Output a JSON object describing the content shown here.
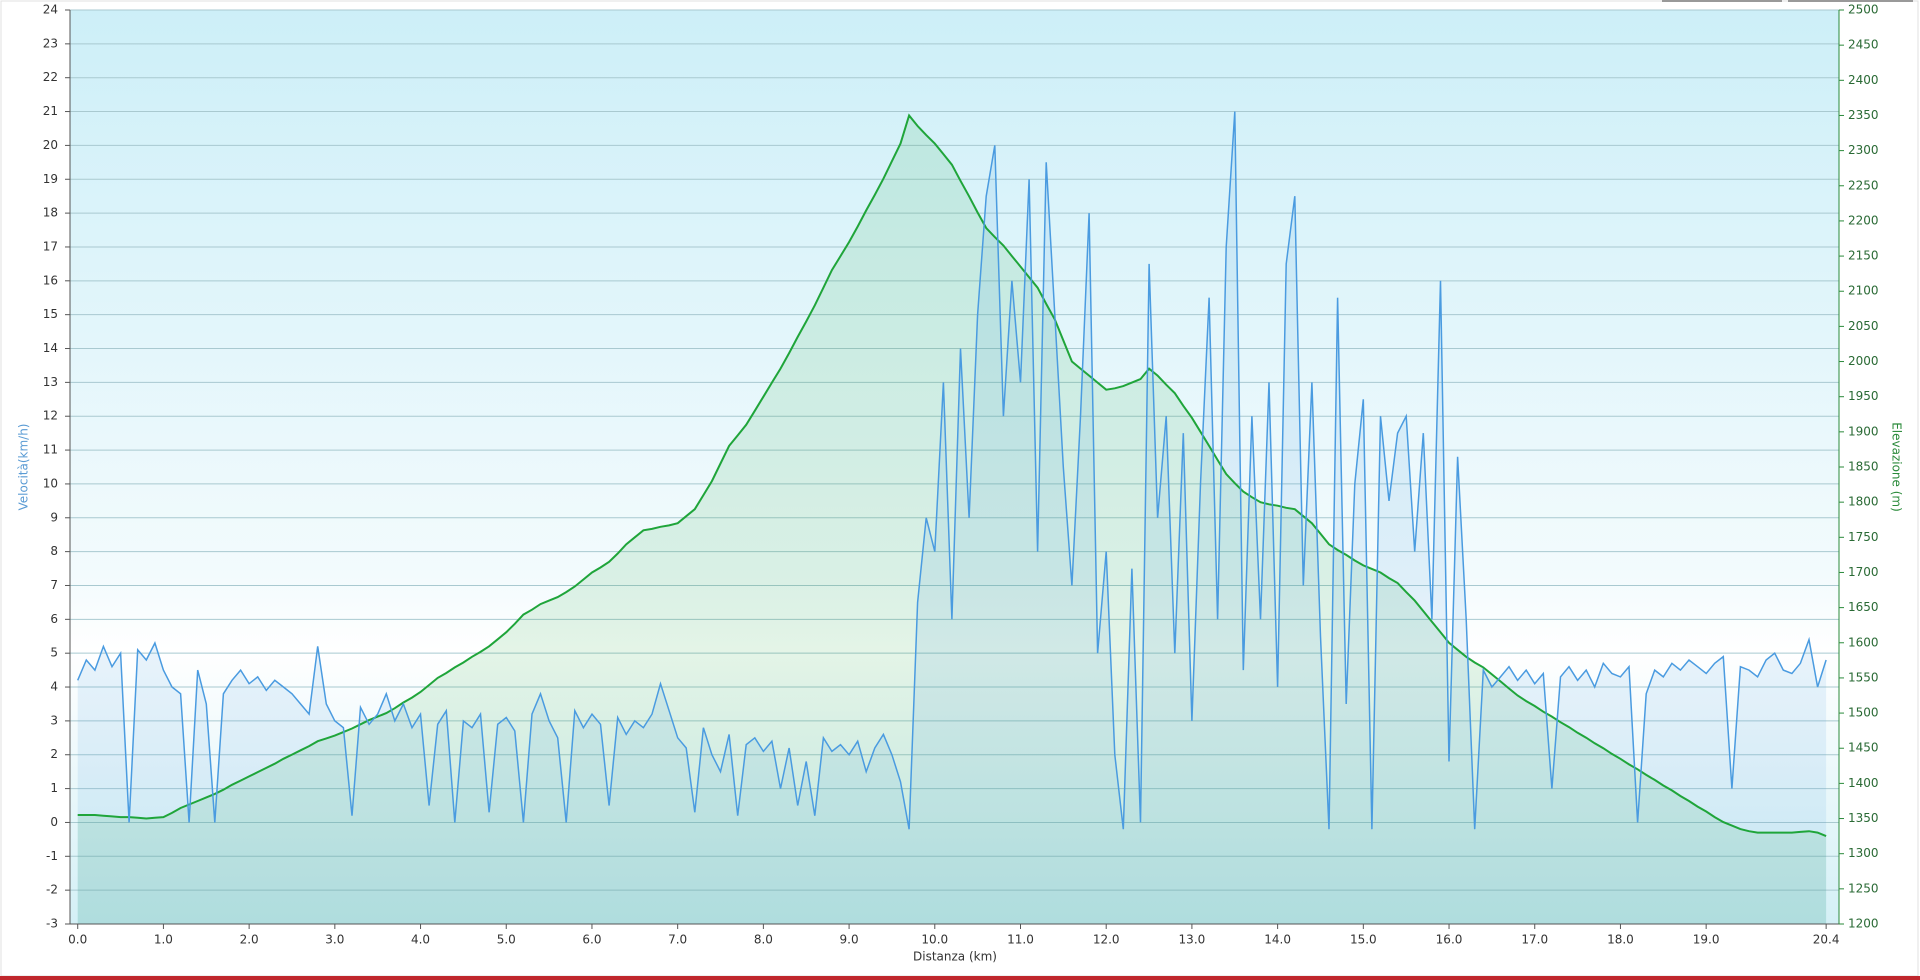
{
  "chart_data": {
    "type": "line",
    "x_label": "Distanza  (km)",
    "y_label": "Velocità(km/h)",
    "y2_label": "Elevazione (m)",
    "xlim": [
      -0.09,
      20.55
    ],
    "ylim": [
      -3,
      24
    ],
    "y2lim": [
      1200,
      2500
    ],
    "xticks": [
      {
        "value": 0,
        "label": "0.0"
      },
      {
        "value": 1,
        "label": "1.0"
      },
      {
        "value": 2,
        "label": "2.0"
      },
      {
        "value": 3,
        "label": "3.0"
      },
      {
        "value": 4,
        "label": "4.0"
      },
      {
        "value": 5,
        "label": "5.0"
      },
      {
        "value": 6,
        "label": "6.0"
      },
      {
        "value": 7,
        "label": "7.0"
      },
      {
        "value": 8,
        "label": "8.0"
      },
      {
        "value": 9,
        "label": "9.0"
      },
      {
        "value": 10,
        "label": "10.0"
      },
      {
        "value": 11,
        "label": "11.0"
      },
      {
        "value": 12,
        "label": "12.0"
      },
      {
        "value": 13,
        "label": "13.0"
      },
      {
        "value": 14,
        "label": "14.0"
      },
      {
        "value": 15,
        "label": "15.0"
      },
      {
        "value": 16,
        "label": "16.0"
      },
      {
        "value": 17,
        "label": "17.0"
      },
      {
        "value": 18,
        "label": "18.0"
      },
      {
        "value": 19,
        "label": "19.0"
      },
      20.4
    ],
    "yticks": [
      -3,
      -2,
      -1,
      0,
      1,
      2,
      3,
      4,
      5,
      6,
      7,
      8,
      9,
      10,
      11,
      12,
      13,
      14,
      15,
      16,
      17,
      18,
      19,
      20,
      21,
      22,
      23,
      24
    ],
    "y2ticks": [
      1200,
      1250,
      1300,
      1350,
      1400,
      1450,
      1500,
      1550,
      1600,
      1650,
      1700,
      1750,
      1800,
      1850,
      1900,
      1950,
      2000,
      2050,
      2100,
      2150,
      2200,
      2250,
      2300,
      2350,
      2400,
      2450,
      2500
    ],
    "grid": true,
    "x": [
      0,
      0.1,
      0.2,
      0.3,
      0.4,
      0.5,
      0.6,
      0.7,
      0.8,
      0.9,
      1,
      1.1,
      1.2,
      1.3,
      1.4,
      1.5,
      1.6,
      1.7,
      1.8,
      1.9,
      2,
      2.1,
      2.2,
      2.3,
      2.4,
      2.5,
      2.6,
      2.7,
      2.8,
      2.9,
      3,
      3.1,
      3.2,
      3.3,
      3.4,
      3.5,
      3.6,
      3.7,
      3.8,
      3.9,
      4,
      4.1,
      4.2,
      4.3,
      4.4,
      4.5,
      4.6,
      4.7,
      4.8,
      4.9,
      5,
      5.1,
      5.2,
      5.3,
      5.4,
      5.5,
      5.6,
      5.7,
      5.8,
      5.9,
      6,
      6.1,
      6.2,
      6.3,
      6.4,
      6.5,
      6.6,
      6.7,
      6.8,
      6.9,
      7,
      7.1,
      7.2,
      7.3,
      7.4,
      7.5,
      7.6,
      7.7,
      7.8,
      7.9,
      8,
      8.1,
      8.2,
      8.3,
      8.4,
      8.5,
      8.6,
      8.7,
      8.8,
      8.9,
      9,
      9.1,
      9.2,
      9.3,
      9.4,
      9.5,
      9.6,
      9.7,
      9.8,
      9.9,
      10,
      10.1,
      10.2,
      10.3,
      10.4,
      10.5,
      10.6,
      10.7,
      10.8,
      10.9,
      11,
      11.1,
      11.2,
      11.3,
      11.4,
      11.5,
      11.6,
      11.7,
      11.8,
      11.9,
      12,
      12.1,
      12.2,
      12.3,
      12.4,
      12.5,
      12.6,
      12.7,
      12.8,
      12.9,
      13,
      13.1,
      13.2,
      13.3,
      13.4,
      13.5,
      13.6,
      13.7,
      13.8,
      13.9,
      14,
      14.1,
      14.2,
      14.3,
      14.4,
      14.5,
      14.6,
      14.7,
      14.8,
      14.9,
      15,
      15.1,
      15.2,
      15.3,
      15.4,
      15.5,
      15.6,
      15.7,
      15.8,
      15.9,
      16,
      16.1,
      16.2,
      16.3,
      16.4,
      16.5,
      16.6,
      16.7,
      16.8,
      16.9,
      17,
      17.1,
      17.2,
      17.3,
      17.4,
      17.5,
      17.6,
      17.7,
      17.8,
      17.9,
      18,
      18.1,
      18.2,
      18.3,
      18.4,
      18.5,
      18.6,
      18.7,
      18.8,
      18.9,
      19,
      19.1,
      19.2,
      19.3,
      19.4,
      19.5,
      19.6,
      19.7,
      19.8,
      19.9,
      20,
      20.1,
      20.2,
      20.3,
      20.4
    ],
    "series": [
      {
        "name": "Velocità",
        "color": "#4a9be0",
        "values": [
          4.2,
          4.8,
          4.5,
          5.2,
          4.6,
          5.0,
          0,
          5.1,
          4.8,
          5.3,
          4.5,
          4.0,
          3.8,
          0,
          4.5,
          3.5,
          0,
          3.8,
          4.2,
          4.5,
          4.1,
          4.3,
          3.9,
          4.2,
          4.0,
          3.8,
          3.5,
          3.2,
          5.2,
          3.5,
          3.0,
          2.8,
          0.2,
          3.4,
          2.9,
          3.2,
          3.8,
          3.0,
          3.5,
          2.8,
          3.2,
          0.5,
          2.9,
          3.3,
          0,
          3.0,
          2.8,
          3.2,
          0.3,
          2.9,
          3.1,
          2.7,
          0,
          3.2,
          3.8,
          3.0,
          2.5,
          0,
          3.3,
          2.8,
          3.2,
          2.9,
          0.5,
          3.1,
          2.6,
          3.0,
          2.8,
          3.2,
          4.1,
          3.3,
          2.5,
          2.2,
          0.3,
          2.8,
          2.0,
          1.5,
          2.6,
          0.2,
          2.3,
          2.5,
          2.1,
          2.4,
          1.0,
          2.2,
          0.5,
          1.8,
          0.2,
          2.5,
          2.1,
          2.3,
          2.0,
          2.4,
          1.5,
          2.2,
          2.6,
          2.0,
          1.2,
          -0.2,
          6.5,
          9.0,
          8.0,
          13.0,
          6.0,
          14.0,
          9.0,
          15.0,
          18.5,
          20.0,
          12.0,
          16.0,
          13.0,
          19.0,
          8.0,
          19.5,
          15.0,
          10.5,
          7.0,
          12.0,
          18.0,
          5.0,
          8.0,
          2.0,
          -0.2,
          7.5,
          0,
          16.5,
          9.0,
          12.0,
          5.0,
          11.5,
          3.0,
          10.0,
          15.5,
          6.0,
          17.0,
          21.0,
          4.5,
          12.0,
          6.0,
          13.0,
          4.0,
          16.5,
          18.5,
          7.0,
          13.0,
          5.5,
          -0.2,
          15.5,
          3.5,
          10.0,
          12.5,
          -0.2,
          12.0,
          9.5,
          11.5,
          12.0,
          8.0,
          11.5,
          6.0,
          16.0,
          1.8,
          10.8,
          6.0,
          -0.2,
          4.5,
          4.0,
          4.3,
          4.6,
          4.2,
          4.5,
          4.1,
          4.4,
          1.0,
          4.3,
          4.6,
          4.2,
          4.5,
          4.0,
          4.7,
          4.4,
          4.3,
          4.6,
          0.0,
          3.8,
          4.5,
          4.3,
          4.7,
          4.5,
          4.8,
          4.6,
          4.4,
          4.7,
          4.9,
          1.0,
          4.6,
          4.5,
          4.3,
          4.8,
          5.0,
          4.5,
          4.4,
          4.7,
          5.4,
          4.0,
          4.8
        ]
      },
      {
        "name": "Elevazione",
        "color": "#1fa53a",
        "axis": "y2",
        "values": [
          1355,
          1355,
          1355,
          1354,
          1353,
          1352,
          1352,
          1351,
          1350,
          1351,
          1352,
          1358,
          1365,
          1370,
          1375,
          1380,
          1385,
          1391,
          1398,
          1404,
          1410,
          1416,
          1422,
          1428,
          1435,
          1441,
          1447,
          1453,
          1460,
          1464,
          1468,
          1473,
          1478,
          1484,
          1490,
          1495,
          1500,
          1507,
          1515,
          1522,
          1530,
          1540,
          1550,
          1557,
          1565,
          1572,
          1580,
          1587,
          1595,
          1605,
          1615,
          1627,
          1640,
          1647,
          1655,
          1660,
          1665,
          1672,
          1680,
          1690,
          1700,
          1707,
          1715,
          1727,
          1740,
          1750,
          1760,
          1762,
          1765,
          1767,
          1770,
          1780,
          1790,
          1810,
          1830,
          1855,
          1880,
          1895,
          1910,
          1930,
          1950,
          1970,
          1990,
          2012,
          2035,
          2057,
          2080,
          2105,
          2130,
          2150,
          2170,
          2192,
          2215,
          2237,
          2260,
          2285,
          2310,
          2350,
          2335,
          2322,
          2310,
          2295,
          2280,
          2257,
          2235,
          2212,
          2190,
          2177,
          2165,
          2150,
          2135,
          2120,
          2105,
          2082,
          2060,
          2030,
          2000,
          1990,
          1980,
          1970,
          1960,
          1962,
          1965,
          1970,
          1975,
          1990,
          1980,
          1967,
          1955,
          1937,
          1920,
          1900,
          1880,
          1860,
          1840,
          1827,
          1815,
          1807,
          1800,
          1797,
          1795,
          1792,
          1790,
          1780,
          1770,
          1755,
          1740,
          1732,
          1725,
          1717,
          1710,
          1705,
          1700,
          1692,
          1685,
          1672,
          1660,
          1645,
          1630,
          1615,
          1600,
          1590,
          1580,
          1572,
          1565,
          1555,
          1545,
          1535,
          1525,
          1517,
          1510,
          1502,
          1495,
          1487,
          1480,
          1472,
          1465,
          1457,
          1450,
          1442,
          1435,
          1427,
          1420,
          1412,
          1405,
          1397,
          1390,
          1382,
          1375,
          1367,
          1360,
          1352,
          1345,
          1340,
          1335,
          1332,
          1330,
          1330,
          1330,
          1330,
          1330,
          1331,
          1332,
          1330,
          1325
        ]
      }
    ]
  }
}
